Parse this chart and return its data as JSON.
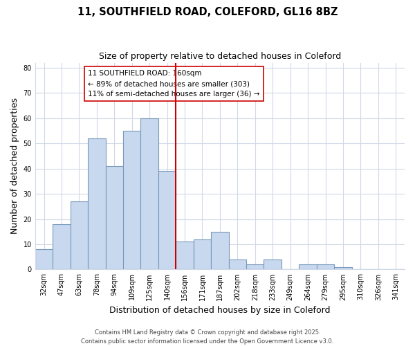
{
  "title": "11, SOUTHFIELD ROAD, COLEFORD, GL16 8BZ",
  "subtitle": "Size of property relative to detached houses in Coleford",
  "xlabel": "Distribution of detached houses by size in Coleford",
  "ylabel": "Number of detached properties",
  "categories": [
    "32sqm",
    "47sqm",
    "63sqm",
    "78sqm",
    "94sqm",
    "109sqm",
    "125sqm",
    "140sqm",
    "156sqm",
    "171sqm",
    "187sqm",
    "202sqm",
    "218sqm",
    "233sqm",
    "249sqm",
    "264sqm",
    "279sqm",
    "295sqm",
    "310sqm",
    "326sqm",
    "341sqm"
  ],
  "values": [
    8,
    18,
    27,
    52,
    41,
    55,
    60,
    39,
    11,
    12,
    15,
    4,
    2,
    4,
    0,
    2,
    2,
    1,
    0,
    0,
    0
  ],
  "bar_color": "#c8d8ee",
  "bar_edge_color": "#7799bb",
  "vline_index": 8,
  "vline_color": "#cc0000",
  "annotation_text_line1": "11 SOUTHFIELD ROAD: 160sqm",
  "annotation_text_line2": "← 89% of detached houses are smaller (303)",
  "annotation_text_line3": "11% of semi-detached houses are larger (36) →",
  "ylim": [
    0,
    82
  ],
  "yticks": [
    0,
    10,
    20,
    30,
    40,
    50,
    60,
    70,
    80
  ],
  "bg_color": "#ffffff",
  "grid_color": "#d0d8e8",
  "footer": "Contains HM Land Registry data © Crown copyright and database right 2025.\nContains public sector information licensed under the Open Government Licence v3.0.",
  "title_fontsize": 10.5,
  "subtitle_fontsize": 9,
  "axis_label_fontsize": 9,
  "tick_fontsize": 7,
  "annotation_fontsize": 7.5,
  "footer_fontsize": 6
}
